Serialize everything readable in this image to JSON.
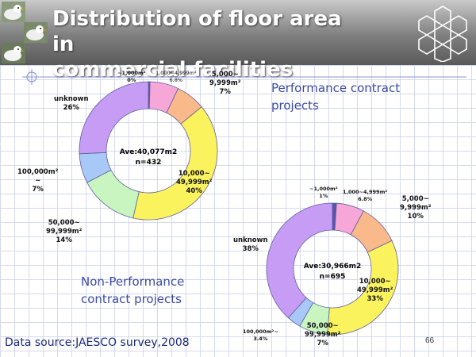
{
  "header": {
    "title_line1": "Distribution of floor area in",
    "title_line2": "commercial facilities"
  },
  "chart_data": [
    {
      "type": "pie",
      "title": "Performance contract projects",
      "center_label_line1": "Ave:40,077m2",
      "center_label_line2": "n=432",
      "categories": [
        "~1,000m²",
        "1,000~4,999m²",
        "5,000~9,999m²",
        "10,000~49,999m²",
        "50,000~99,999m²",
        "100,000m²~",
        "unknown"
      ],
      "values": [
        0.4,
        6.8,
        7,
        40,
        14,
        7,
        26
      ],
      "value_labels": [
        "0%",
        "6.8%",
        "7%",
        "40%",
        "14%",
        "7%",
        "26%"
      ],
      "colors": [
        "#5a54ad",
        "#f7a6d8",
        "#f9b98a",
        "#fbf35e",
        "#c8f5c0",
        "#a8c8f7",
        "#c69cf5"
      ]
    },
    {
      "type": "pie",
      "title": "Non-Performance contract projects",
      "center_label_line1": "Ave:30,966m2",
      "center_label_line2": "n=695",
      "categories": [
        "~1,000m²",
        "1,000~4,999m²",
        "5,000~9,999m²",
        "10,000~49,999m²",
        "50,000~99,999m²",
        "100,000m²~",
        "unknown"
      ],
      "values": [
        1,
        6.8,
        10,
        33,
        7,
        3.4,
        38
      ],
      "value_labels": [
        "1%",
        "6.8%",
        "10%",
        "33%",
        "7%",
        "3.4%",
        "38%"
      ],
      "colors": [
        "#5a54ad",
        "#f7a6d8",
        "#f9b98a",
        "#fbf35e",
        "#c8f5c0",
        "#a8c8f7",
        "#c69cf5"
      ]
    }
  ],
  "labels": {
    "c1_s0": "~1,000m²\n0%",
    "c1_s1": "1,000~4,999m²\n6.8%",
    "c1_s2": "5,000~\n9,999m²\n7%",
    "c1_s3": "10,000~\n49,999m²\n40%",
    "c1_s4": "50,000~\n99,999m²\n14%",
    "c1_s5": "100,000m²\n~\n7%",
    "c1_s6": "unknown\n26%",
    "c2_s0": "~1,000m²\n1%",
    "c2_s1": "1,000~4,999m²\n6.8%",
    "c2_s2": "5,000~\n9,999m²\n10%",
    "c2_s3": "10,000~\n49,999m²\n33%",
    "c2_s4": "50,000~\n99,999m²\n7%",
    "c2_s5": "100,000m²~\n3.4%",
    "c2_s6": "unknown\n38%"
  },
  "headings": {
    "performance_line1": "Performance contract",
    "performance_line2": "projects",
    "nonperformance_line1": "Non-Performance",
    "nonperformance_line2": "contract projects"
  },
  "footer": {
    "source": "Data source:JAESCO survey,2008",
    "page_number": "66"
  }
}
